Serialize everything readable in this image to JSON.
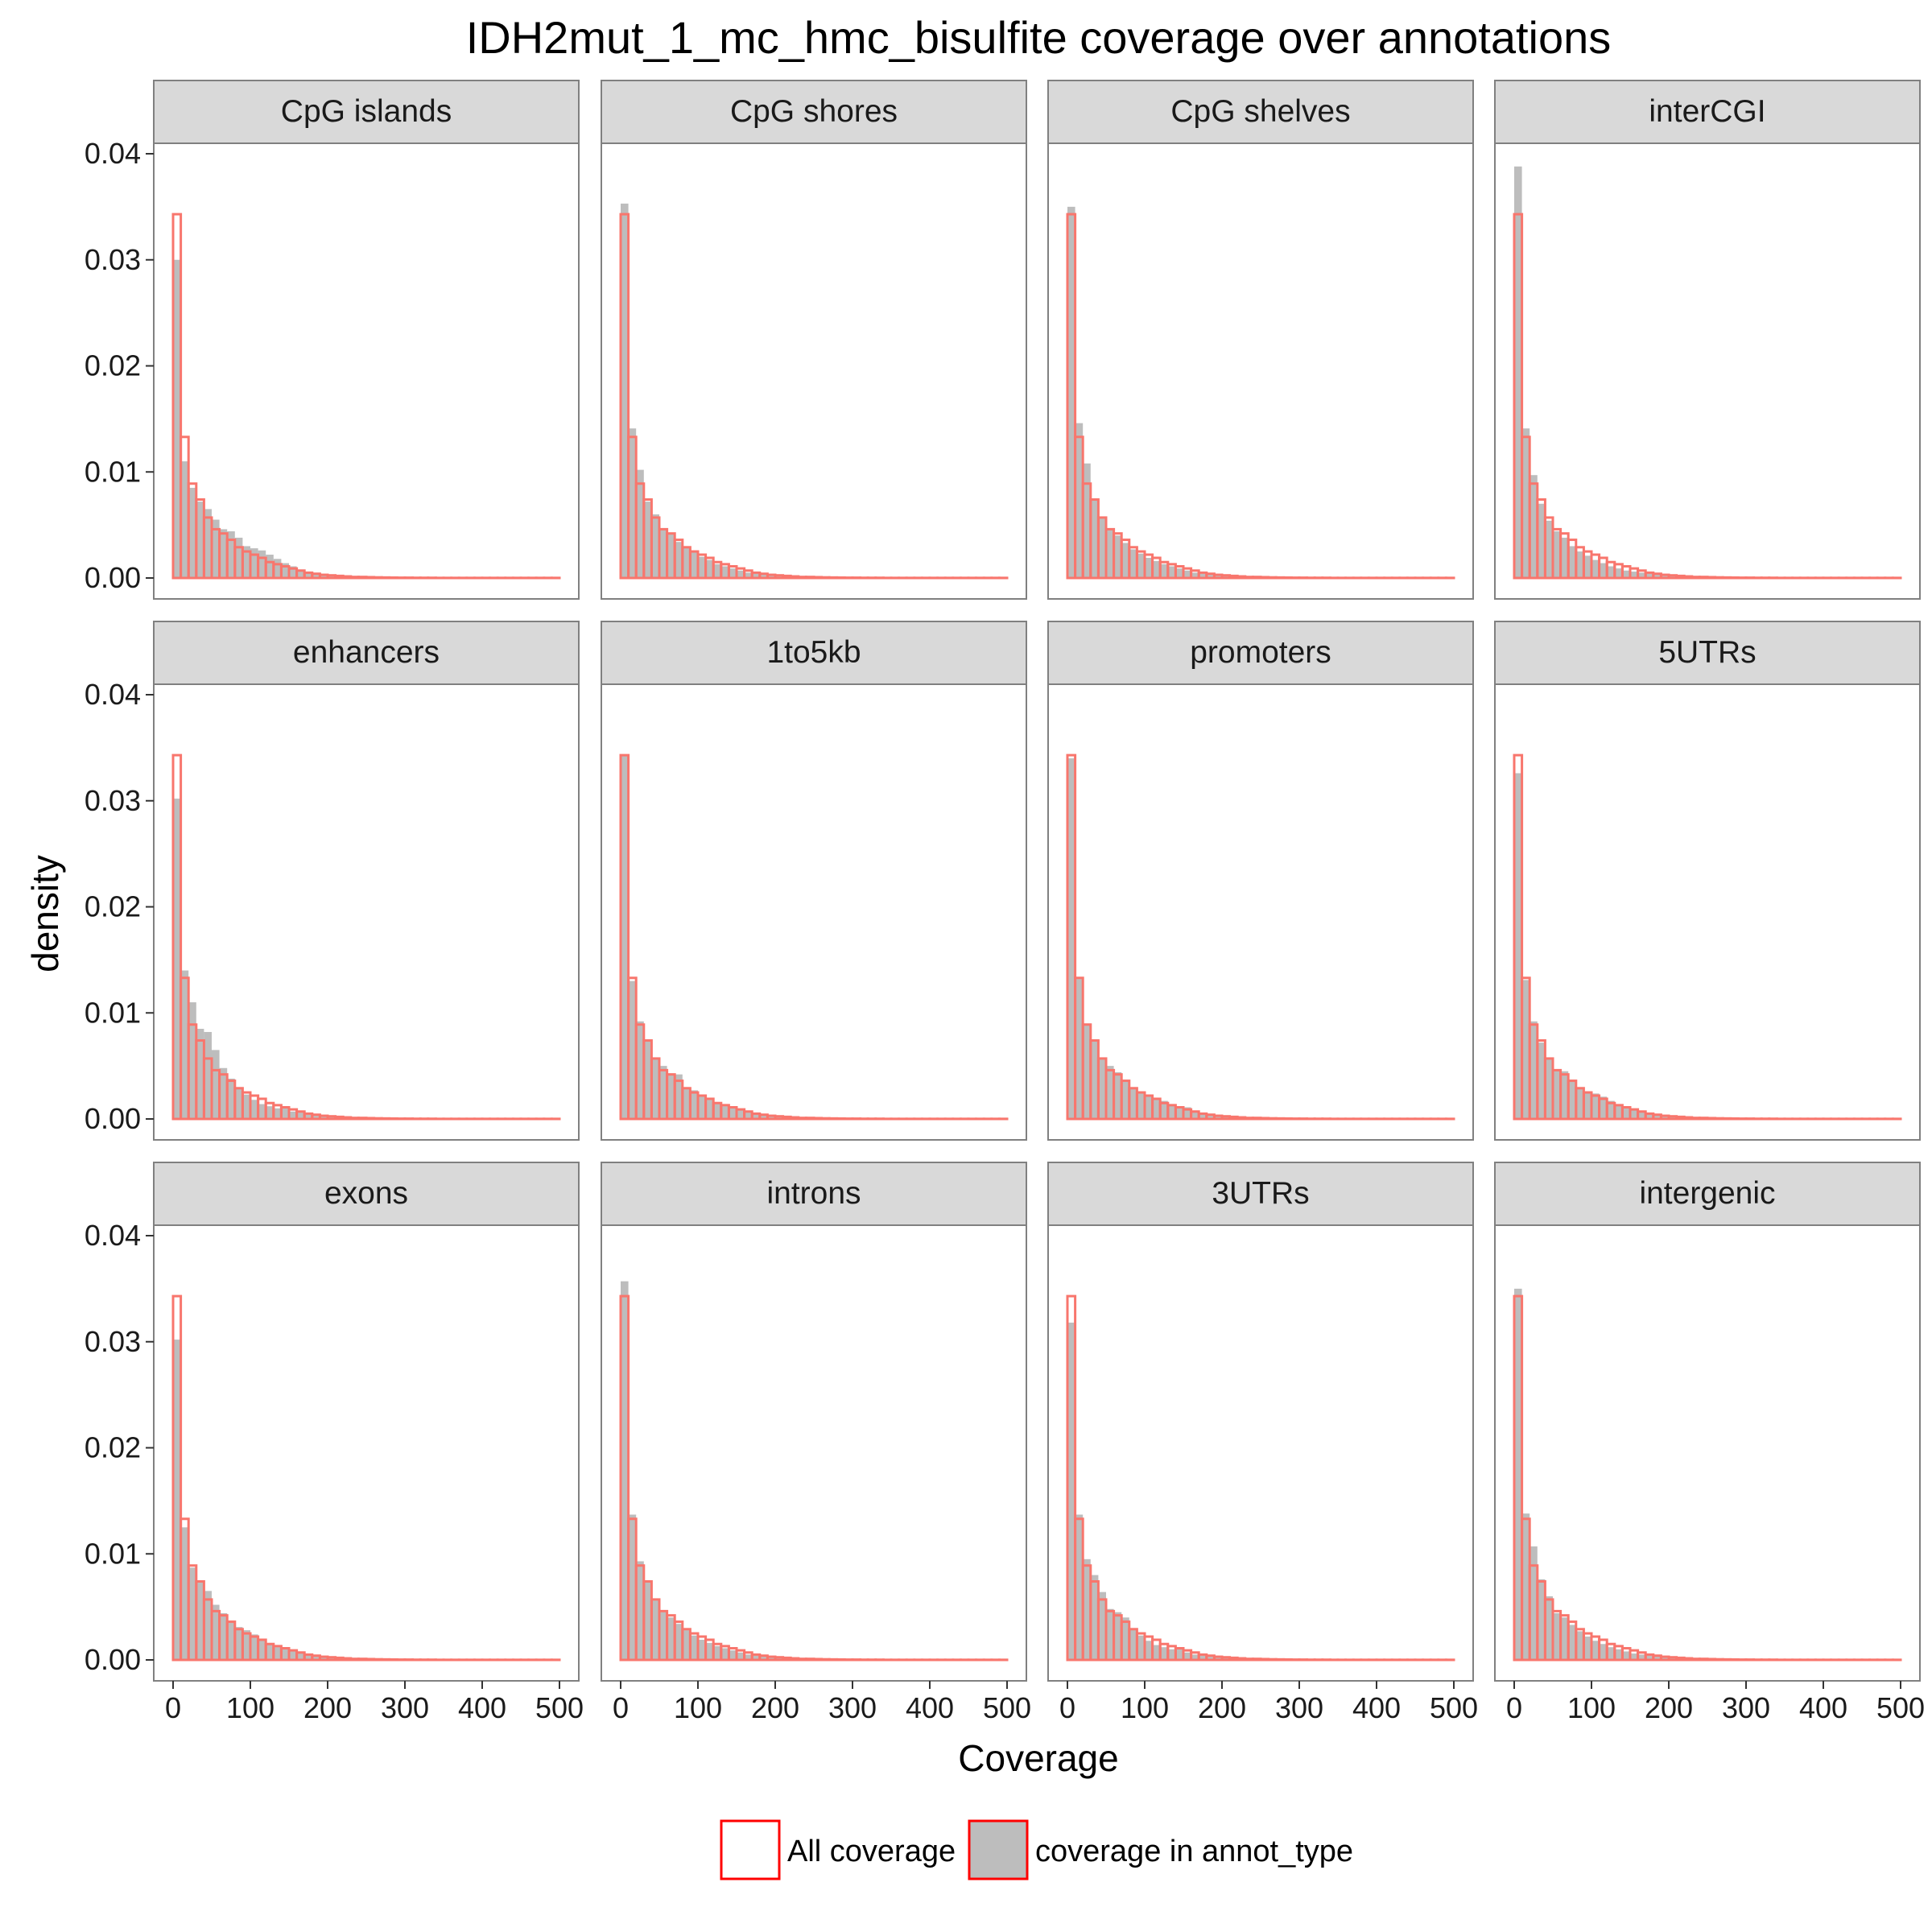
{
  "chart_data": {
    "type": "histogram-facet",
    "title": "IDH2mut_1_mc_hmc_bisulfite coverage over annotations",
    "xlabel": "Coverage",
    "ylabel": "density",
    "xlim": [
      0,
      500
    ],
    "ylim": [
      0,
      0.04
    ],
    "x_ticks": [
      0,
      100,
      200,
      300,
      400,
      500
    ],
    "x_tick_labels": [
      "0",
      "100",
      "200",
      "300",
      "400",
      "500"
    ],
    "y_ticks": [
      0,
      0.01,
      0.02,
      0.03,
      0.04
    ],
    "y_tick_labels": [
      "0.00",
      "0.01",
      "0.02",
      "0.03",
      "0.04"
    ],
    "bin_width": 10,
    "bin_starts": [
      0,
      10,
      20,
      30,
      40,
      50,
      60,
      70,
      80,
      90,
      100,
      110,
      120,
      130,
      140,
      150,
      160,
      170,
      180,
      190,
      200,
      210,
      220,
      230,
      240,
      250,
      260,
      270,
      280,
      290,
      300,
      310,
      320,
      330,
      340,
      350,
      360,
      370,
      380,
      390,
      400,
      410,
      420,
      430,
      440,
      450,
      460,
      470,
      480,
      490
    ],
    "grid": false,
    "legend_position": "bottom",
    "legend": [
      {
        "label": "All coverage",
        "fill": "#ffffff",
        "stroke": "#ff0000"
      },
      {
        "label": "coverage in annot_type",
        "fill": "#bdbdbd",
        "stroke": "#ff0000"
      }
    ],
    "colors": {
      "all_coverage_outline": "#f8766d",
      "annot_fill": "#bdbdbd",
      "strip_fill": "#d9d9d9",
      "panel_border": "#808080"
    },
    "series_names": [
      "All coverage",
      "coverage in annot_type"
    ],
    "all_coverage": [
      0.0343,
      0.0133,
      0.0089,
      0.0074,
      0.0057,
      0.0046,
      0.0042,
      0.0036,
      0.0029,
      0.0025,
      0.0022,
      0.0019,
      0.0015,
      0.0013,
      0.0011,
      0.0009,
      0.0007,
      0.0005,
      0.0004,
      0.0003,
      0.00025,
      0.0002,
      0.00015,
      0.0001,
      0.0001,
      8e-05,
      6e-05,
      5e-05,
      4e-05,
      3e-05,
      3e-05,
      2e-05,
      2e-05,
      2e-05,
      1e-05,
      1e-05,
      1e-05,
      1e-05,
      1e-05,
      1e-05,
      1e-05,
      1e-05,
      1e-05,
      1e-05,
      1e-05,
      1e-05,
      1e-05,
      1e-05,
      1e-05,
      1e-05
    ],
    "panels": [
      {
        "label": "CpG islands",
        "annot": [
          0.03,
          0.011,
          0.0085,
          0.0072,
          0.0065,
          0.0055,
          0.0046,
          0.0044,
          0.0038,
          0.003,
          0.0028,
          0.0026,
          0.0022,
          0.0018,
          0.0014,
          0.0011,
          0.0008,
          0.0006,
          0.0005,
          0.0004,
          0.0003,
          0.0002,
          0.00015,
          0.0001,
          0.0001,
          8e-05,
          6e-05,
          5e-05,
          4e-05,
          3e-05,
          3e-05,
          2e-05,
          2e-05,
          2e-05,
          1e-05,
          1e-05,
          1e-05,
          1e-05,
          1e-05,
          1e-05,
          1e-05,
          1e-05,
          1e-05,
          1e-05,
          1e-05,
          1e-05,
          1e-05,
          1e-05,
          1e-05,
          1e-05
        ]
      },
      {
        "label": "CpG shores",
        "annot": [
          0.0353,
          0.0141,
          0.0102,
          0.0072,
          0.006,
          0.0047,
          0.0042,
          0.0034,
          0.0029,
          0.0024,
          0.002,
          0.0017,
          0.0013,
          0.0011,
          0.0009,
          0.0007,
          0.0005,
          0.0004,
          0.0003,
          0.00025,
          0.0002,
          0.00015,
          0.0001,
          0.0001,
          8e-05,
          6e-05,
          5e-05,
          4e-05,
          3e-05,
          3e-05,
          2e-05,
          2e-05,
          2e-05,
          1e-05,
          1e-05,
          1e-05,
          1e-05,
          1e-05,
          1e-05,
          1e-05,
          1e-05,
          1e-05,
          1e-05,
          1e-05,
          1e-05,
          1e-05,
          1e-05,
          1e-05,
          1e-05,
          1e-05
        ]
      },
      {
        "label": "CpG shelves",
        "annot": [
          0.035,
          0.0146,
          0.0108,
          0.0074,
          0.0058,
          0.0046,
          0.004,
          0.0033,
          0.0027,
          0.0023,
          0.0019,
          0.0016,
          0.0013,
          0.0011,
          0.0009,
          0.0007,
          0.0005,
          0.0004,
          0.0003,
          0.00025,
          0.0002,
          0.00015,
          0.0001,
          0.0001,
          8e-05,
          6e-05,
          5e-05,
          4e-05,
          3e-05,
          3e-05,
          2e-05,
          2e-05,
          2e-05,
          1e-05,
          1e-05,
          1e-05,
          1e-05,
          1e-05,
          1e-05,
          1e-05,
          1e-05,
          1e-05,
          1e-05,
          1e-05,
          1e-05,
          1e-05,
          1e-05,
          1e-05,
          1e-05,
          1e-05
        ]
      },
      {
        "label": "interCGI",
        "annot": [
          0.0388,
          0.0141,
          0.0097,
          0.007,
          0.0054,
          0.0044,
          0.0038,
          0.003,
          0.0025,
          0.0021,
          0.0017,
          0.0014,
          0.0011,
          0.0009,
          0.0007,
          0.0006,
          0.0005,
          0.0004,
          0.0003,
          0.00025,
          0.0002,
          0.00015,
          0.0001,
          0.0001,
          8e-05,
          6e-05,
          5e-05,
          4e-05,
          3e-05,
          3e-05,
          2e-05,
          2e-05,
          2e-05,
          1e-05,
          1e-05,
          1e-05,
          1e-05,
          1e-05,
          1e-05,
          1e-05,
          1e-05,
          1e-05,
          1e-05,
          1e-05,
          1e-05,
          1e-05,
          1e-05,
          1e-05,
          1e-05,
          1e-05
        ]
      },
      {
        "label": "enhancers",
        "annot": [
          0.0302,
          0.014,
          0.011,
          0.0085,
          0.0082,
          0.0065,
          0.0048,
          0.0038,
          0.003,
          0.0023,
          0.0018,
          0.0014,
          0.0012,
          0.001,
          0.0012,
          0.0007,
          0.0006,
          0.0004,
          0.0003,
          0.00025,
          0.0002,
          0.00015,
          0.0001,
          0.0001,
          8e-05,
          6e-05,
          5e-05,
          4e-05,
          3e-05,
          3e-05,
          2e-05,
          2e-05,
          2e-05,
          1e-05,
          1e-05,
          1e-05,
          1e-05,
          1e-05,
          1e-05,
          1e-05,
          1e-05,
          1e-05,
          1e-05,
          1e-05,
          1e-05,
          1e-05,
          1e-05,
          1e-05,
          1e-05,
          1e-05
        ]
      },
      {
        "label": "1to5kb",
        "annot": [
          0.0342,
          0.013,
          0.0092,
          0.0074,
          0.0057,
          0.005,
          0.0043,
          0.0042,
          0.003,
          0.0027,
          0.0022,
          0.0018,
          0.0014,
          0.0012,
          0.001,
          0.0008,
          0.0006,
          0.0005,
          0.0004,
          0.0003,
          0.00025,
          0.0002,
          0.00015,
          0.0001,
          0.0001,
          8e-05,
          6e-05,
          5e-05,
          4e-05,
          3e-05,
          3e-05,
          2e-05,
          2e-05,
          2e-05,
          1e-05,
          1e-05,
          1e-05,
          1e-05,
          1e-05,
          1e-05,
          1e-05,
          1e-05,
          1e-05,
          1e-05,
          1e-05,
          1e-05,
          1e-05,
          1e-05,
          1e-05,
          1e-05
        ]
      },
      {
        "label": "promoters",
        "annot": [
          0.034,
          0.0132,
          0.009,
          0.0075,
          0.0058,
          0.005,
          0.0044,
          0.0037,
          0.003,
          0.0025,
          0.0022,
          0.002,
          0.0017,
          0.0014,
          0.0011,
          0.0011,
          0.0008,
          0.0006,
          0.0005,
          0.0004,
          0.0003,
          0.0002,
          0.00015,
          0.0001,
          0.0001,
          8e-05,
          6e-05,
          5e-05,
          4e-05,
          3e-05,
          3e-05,
          2e-05,
          2e-05,
          2e-05,
          1e-05,
          1e-05,
          1e-05,
          1e-05,
          1e-05,
          1e-05,
          1e-05,
          1e-05,
          1e-05,
          1e-05,
          1e-05,
          1e-05,
          1e-05,
          1e-05,
          1e-05,
          1e-05
        ]
      },
      {
        "label": "5UTRs",
        "annot": [
          0.0326,
          0.0131,
          0.0092,
          0.0072,
          0.0058,
          0.0046,
          0.0045,
          0.0037,
          0.003,
          0.0026,
          0.0024,
          0.0021,
          0.0017,
          0.0013,
          0.0011,
          0.0009,
          0.0007,
          0.0005,
          0.0004,
          0.0003,
          0.00025,
          0.0002,
          0.00015,
          0.0001,
          0.0001,
          8e-05,
          6e-05,
          5e-05,
          4e-05,
          3e-05,
          3e-05,
          2e-05,
          2e-05,
          2e-05,
          1e-05,
          1e-05,
          1e-05,
          1e-05,
          1e-05,
          1e-05,
          1e-05,
          1e-05,
          1e-05,
          1e-05,
          1e-05,
          1e-05,
          1e-05,
          1e-05,
          1e-05,
          1e-05
        ]
      },
      {
        "label": "exons",
        "annot": [
          0.0302,
          0.0125,
          0.0087,
          0.0075,
          0.0065,
          0.0052,
          0.0044,
          0.0037,
          0.0031,
          0.0028,
          0.0024,
          0.0019,
          0.0015,
          0.0012,
          0.0011,
          0.0009,
          0.0007,
          0.0005,
          0.0004,
          0.0003,
          0.00025,
          0.0002,
          0.00015,
          0.0001,
          0.0001,
          8e-05,
          6e-05,
          5e-05,
          4e-05,
          3e-05,
          3e-05,
          2e-05,
          2e-05,
          2e-05,
          1e-05,
          1e-05,
          1e-05,
          1e-05,
          1e-05,
          1e-05,
          1e-05,
          1e-05,
          1e-05,
          1e-05,
          1e-05,
          1e-05,
          1e-05,
          1e-05,
          1e-05,
          1e-05
        ]
      },
      {
        "label": "introns",
        "annot": [
          0.0357,
          0.0137,
          0.0093,
          0.0073,
          0.0056,
          0.0045,
          0.004,
          0.0034,
          0.0028,
          0.0023,
          0.0019,
          0.0016,
          0.0013,
          0.0011,
          0.0009,
          0.0007,
          0.0005,
          0.0004,
          0.0003,
          0.00025,
          0.0002,
          0.00015,
          0.0001,
          0.0001,
          8e-05,
          6e-05,
          5e-05,
          4e-05,
          3e-05,
          3e-05,
          2e-05,
          2e-05,
          2e-05,
          1e-05,
          1e-05,
          1e-05,
          1e-05,
          1e-05,
          1e-05,
          1e-05,
          1e-05,
          1e-05,
          1e-05,
          1e-05,
          1e-05,
          1e-05,
          1e-05,
          1e-05,
          1e-05,
          1e-05
        ]
      },
      {
        "label": "3UTRs",
        "annot": [
          0.0318,
          0.0137,
          0.0095,
          0.008,
          0.0064,
          0.0048,
          0.0045,
          0.004,
          0.003,
          0.0023,
          0.0018,
          0.0014,
          0.0012,
          0.001,
          0.0012,
          0.0007,
          0.0005,
          0.0004,
          0.0003,
          0.00025,
          0.0002,
          0.00015,
          0.0001,
          0.0001,
          8e-05,
          6e-05,
          5e-05,
          4e-05,
          3e-05,
          3e-05,
          2e-05,
          2e-05,
          2e-05,
          1e-05,
          1e-05,
          1e-05,
          1e-05,
          1e-05,
          1e-05,
          1e-05,
          1e-05,
          1e-05,
          1e-05,
          1e-05,
          1e-05,
          1e-05,
          1e-05,
          1e-05,
          1e-05,
          1e-05
        ]
      },
      {
        "label": "intergenic",
        "annot": [
          0.035,
          0.0138,
          0.0107,
          0.0076,
          0.006,
          0.0044,
          0.004,
          0.0033,
          0.0027,
          0.0022,
          0.0018,
          0.0015,
          0.0012,
          0.001,
          0.0008,
          0.0006,
          0.0005,
          0.0004,
          0.0003,
          0.00025,
          0.0002,
          0.00015,
          0.0001,
          0.0001,
          8e-05,
          6e-05,
          5e-05,
          4e-05,
          3e-05,
          3e-05,
          2e-05,
          2e-05,
          2e-05,
          1e-05,
          1e-05,
          1e-05,
          1e-05,
          1e-05,
          1e-05,
          1e-05,
          1e-05,
          1e-05,
          1e-05,
          1e-05,
          1e-05,
          1e-05,
          1e-05,
          1e-05,
          1e-05,
          1e-05
        ]
      }
    ]
  }
}
